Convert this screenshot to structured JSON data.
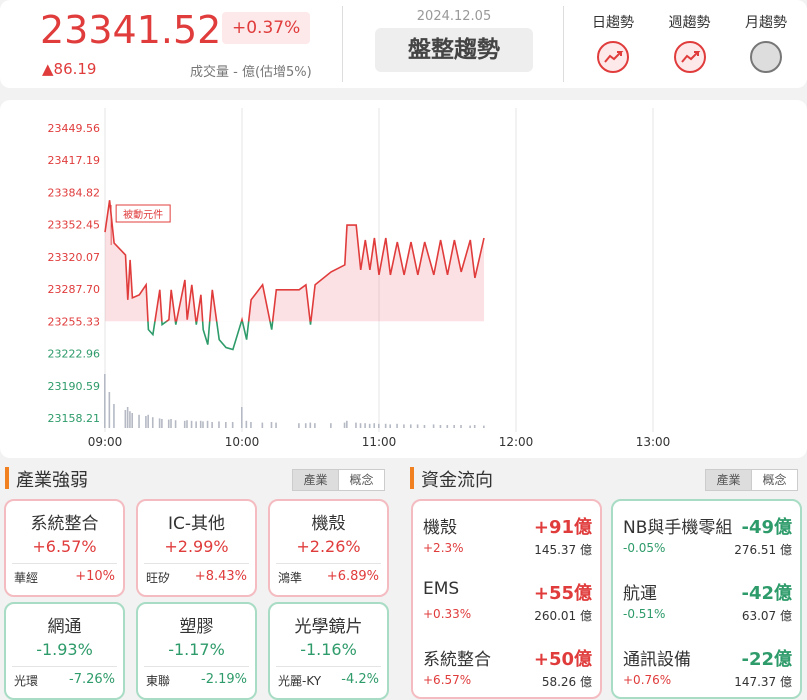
{
  "header": {
    "index": "23341.52",
    "change_pct": "+0.37%",
    "change": "▲86.19",
    "volume": "成交量 - 億(估增5%)",
    "date": "2024.12.05",
    "trend": "盤整趨勢",
    "indicators": [
      {
        "label": "日趨勢",
        "color": "#e03c3c"
      },
      {
        "label": "週趨勢",
        "color": "#e03c3c"
      },
      {
        "label": "月趨勢",
        "color": "#cccccc"
      }
    ]
  },
  "chart_data": {
    "type": "line",
    "x": [
      "09:00",
      "09:02",
      "09:04",
      "09:09",
      "09:10",
      "09:11",
      "09:12",
      "09:15",
      "09:18",
      "09:19",
      "09:21",
      "09:24",
      "09:25",
      "09:28",
      "09:29",
      "09:31",
      "09:35",
      "09:36",
      "09:38",
      "09:40",
      "09:42",
      "09:43",
      "09:45",
      "09:47",
      "09:50",
      "09:53",
      "09:56",
      "10:00",
      "10:02",
      "10:04",
      "10:09",
      "10:13",
      "10:15",
      "10:25",
      "10:28",
      "10:30",
      "10:32",
      "10:39",
      "10:45",
      "10:46",
      "10:50",
      "10:52",
      "10:54",
      "10:56",
      "10:58",
      "11:00",
      "11:03",
      "11:05",
      "11:08",
      "11:11",
      "11:14",
      "11:17",
      "11:20",
      "11:24",
      "11:27",
      "11:30",
      "11:33",
      "11:36",
      "11:40",
      "11:42",
      "11:46"
    ],
    "values": [
      23345,
      23377,
      23334,
      23322,
      23277,
      23317,
      23279,
      23282,
      23292,
      23247,
      23242,
      23287,
      23252,
      23257,
      23287,
      23252,
      23297,
      23257,
      23292,
      23252,
      23282,
      23247,
      23232,
      23287,
      23237,
      23229,
      23227,
      23257,
      23237,
      23277,
      23292,
      23247,
      23287,
      23287,
      23292,
      23252,
      23292,
      23305,
      23312,
      23352,
      23352,
      23307,
      23337,
      23307,
      23339,
      23302,
      23339,
      23302,
      23335,
      23302,
      23335,
      23302,
      23335,
      23302,
      23337,
      23302,
      23337,
      23305,
      23337,
      23299,
      23339
    ],
    "volume": [
      90,
      60,
      40,
      30,
      35,
      28,
      25,
      22,
      20,
      22,
      18,
      16,
      15,
      14,
      15,
      13,
      12,
      13,
      12,
      11,
      12,
      11,
      12,
      10,
      11,
      10,
      10,
      35,
      12,
      10,
      9,
      10,
      9,
      8,
      8,
      9,
      8,
      8,
      9,
      12,
      9,
      8,
      8,
      7,
      8,
      7,
      7,
      6,
      7,
      6,
      6,
      6,
      5,
      6,
      5,
      5,
      5,
      5,
      4,
      5,
      4
    ],
    "volume_lim": [
      0,
      100
    ],
    "reference": 23255.33,
    "up_color": "#e03c3c",
    "down_color": "#2e9b6a",
    "xlim": [
      "09:00",
      "14:00"
    ],
    "xticks": [
      "09:00",
      "10:00",
      "11:00",
      "12:00",
      "13:00"
    ],
    "ylim": [
      23158.21,
      23449.56
    ],
    "yticks": [
      23449.56,
      23417.19,
      23384.82,
      23352.45,
      23320.07,
      {
        "value": 23287.7,
        "label": "23287.70"
      },
      23255.33,
      23222.96,
      23190.59,
      23158.21
    ],
    "annotations": [
      {
        "text": "被動元件",
        "x": "09:04"
      }
    ]
  },
  "industry": {
    "title": "產業強弱",
    "tabs": [
      "產業",
      "概念"
    ],
    "cards": [
      {
        "name": "系統整合",
        "change": "+6.57%",
        "stock": "華經",
        "stock_change": "+10%"
      },
      {
        "name": "IC-其他",
        "change": "+2.99%",
        "stock": "旺矽",
        "stock_change": "+8.43%"
      },
      {
        "name": "機殼",
        "change": "+2.26%",
        "stock": "鴻準",
        "stock_change": "+6.89%"
      },
      {
        "name": "網通",
        "change": "-1.93%",
        "stock": "光環",
        "stock_change": "-7.26%"
      },
      {
        "name": "塑膠",
        "change": "-1.17%",
        "stock": "東聯",
        "stock_change": "-2.19%"
      },
      {
        "name": "光學鏡片",
        "change": "-1.16%",
        "stock": "光麗-KY",
        "stock_change": "-4.2%"
      }
    ]
  },
  "fund_flow": {
    "title": "資金流向",
    "tabs": [
      "產業",
      "概念"
    ],
    "groups": [
      [
        {
          "name": "機殼",
          "amount": "+91億",
          "change": "+2.3%",
          "turnover": "145.37 億"
        },
        {
          "name": "EMS",
          "amount": "+55億",
          "change": "+0.33%",
          "turnover": "260.01 億"
        },
        {
          "name": "系統整合",
          "amount": "+50億",
          "change": "+6.57%",
          "turnover": "58.26 億"
        }
      ],
      [
        {
          "name": "NB與手機零組",
          "amount": "-49億",
          "change": "-0.05%",
          "turnover": "276.51 億"
        },
        {
          "name": "航運",
          "amount": "-42億",
          "change": "-0.51%",
          "turnover": "63.07 億"
        },
        {
          "name": "通訊設備",
          "amount": "-22億",
          "change": "+0.76%",
          "turnover": "147.37 億"
        }
      ]
    ]
  }
}
